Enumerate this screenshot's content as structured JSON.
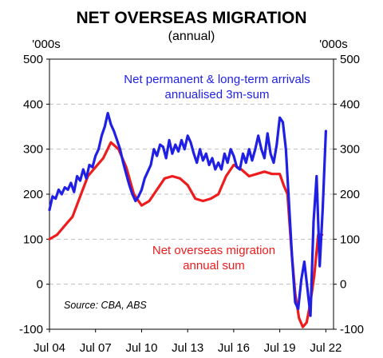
{
  "chart_data": {
    "type": "line",
    "title": "NET OVERSEAS MIGRATION",
    "subtitle": "(annual)",
    "ylabel_left": "'000s",
    "ylabel_right": "'000s",
    "ylim": [
      -100,
      500
    ],
    "yticks": [
      "500",
      "400",
      "300",
      "200",
      "100",
      "0",
      "-100"
    ],
    "yticks_right": [
      "500",
      "400",
      "300",
      "200",
      "100",
      "0",
      "-100"
    ],
    "ytick_values": [
      500,
      400,
      300,
      200,
      100,
      0,
      -100
    ],
    "xlim": [
      2004.5,
      2023.0
    ],
    "xticks": [
      "Jul 04",
      "Jul 07",
      "Jul 10",
      "Jul 13",
      "Jul 16",
      "Jul 19",
      "Jul 22"
    ],
    "xtick_values": [
      2004.5,
      2007.5,
      2010.5,
      2013.5,
      2016.5,
      2019.5,
      2022.5
    ],
    "grid": "horizontal dashed",
    "series": [
      {
        "name": "Net permanent & long-term arrivals annualised 3m-sum",
        "color": "#1f1fe6",
        "x": [
          2004.5,
          2004.7,
          2004.9,
          2005.1,
          2005.3,
          2005.5,
          2005.7,
          2005.9,
          2006.1,
          2006.3,
          2006.5,
          2006.7,
          2006.9,
          2007.1,
          2007.3,
          2007.5,
          2007.7,
          2007.9,
          2008.1,
          2008.3,
          2008.5,
          2008.7,
          2008.9,
          2009.1,
          2009.3,
          2009.5,
          2009.7,
          2009.9,
          2010.1,
          2010.3,
          2010.5,
          2010.7,
          2010.9,
          2011.1,
          2011.3,
          2011.5,
          2011.7,
          2011.9,
          2012.1,
          2012.3,
          2012.5,
          2012.7,
          2012.9,
          2013.1,
          2013.3,
          2013.5,
          2013.7,
          2013.9,
          2014.1,
          2014.3,
          2014.5,
          2014.7,
          2014.9,
          2015.1,
          2015.3,
          2015.5,
          2015.7,
          2015.9,
          2016.1,
          2016.3,
          2016.5,
          2016.7,
          2016.9,
          2017.1,
          2017.3,
          2017.5,
          2017.7,
          2017.9,
          2018.1,
          2018.3,
          2018.5,
          2018.7,
          2018.9,
          2019.1,
          2019.3,
          2019.5,
          2019.7,
          2019.9,
          2020.1,
          2020.3,
          2020.5,
          2020.7,
          2020.9,
          2021.1,
          2021.3,
          2021.5,
          2021.7,
          2021.9,
          2022.1,
          2022.3,
          2022.5
        ],
        "values": [
          165,
          195,
          190,
          210,
          200,
          215,
          210,
          225,
          205,
          240,
          230,
          255,
          235,
          265,
          260,
          285,
          300,
          330,
          350,
          380,
          355,
          340,
          320,
          300,
          270,
          245,
          220,
          200,
          185,
          195,
          210,
          235,
          250,
          265,
          300,
          285,
          310,
          305,
          280,
          320,
          290,
          310,
          295,
          320,
          300,
          330,
          315,
          290,
          270,
          300,
          275,
          290,
          265,
          280,
          255,
          270,
          255,
          290,
          270,
          300,
          285,
          260,
          255,
          290,
          270,
          300,
          275,
          300,
          330,
          300,
          280,
          335,
          290,
          270,
          310,
          370,
          360,
          300,
          180,
          60,
          -40,
          -55,
          10,
          50,
          -10,
          -70,
          140,
          240,
          40,
          170,
          340
        ]
      },
      {
        "name": "Net overseas migration annual sum",
        "color": "#ee1c1c",
        "x": [
          2004.5,
          2005.0,
          2005.5,
          2006.0,
          2006.5,
          2007.0,
          2007.5,
          2008.0,
          2008.5,
          2009.0,
          2009.5,
          2010.0,
          2010.5,
          2011.0,
          2011.5,
          2012.0,
          2012.5,
          2013.0,
          2013.5,
          2014.0,
          2014.5,
          2015.0,
          2015.5,
          2016.0,
          2016.5,
          2017.0,
          2017.5,
          2018.0,
          2018.5,
          2019.0,
          2019.5,
          2019.75,
          2020.0,
          2020.25,
          2020.5,
          2020.75,
          2021.0,
          2021.25,
          2021.5,
          2021.75,
          2022.0,
          2022.25
        ],
        "values": [
          100,
          110,
          130,
          150,
          195,
          240,
          260,
          280,
          315,
          300,
          260,
          200,
          175,
          185,
          210,
          235,
          240,
          235,
          220,
          190,
          185,
          190,
          200,
          240,
          265,
          255,
          240,
          245,
          250,
          245,
          245,
          220,
          200,
          80,
          -20,
          -75,
          -95,
          -85,
          -40,
          20,
          110,
          110
        ]
      }
    ],
    "annotations": {
      "blue_line1": "Net permanent & long-term arrivals",
      "blue_line2": "annualised 3m-sum",
      "red_line1": "Net overseas migration",
      "red_line2": "annual sum",
      "source": "Source: CBA, ABS"
    }
  }
}
